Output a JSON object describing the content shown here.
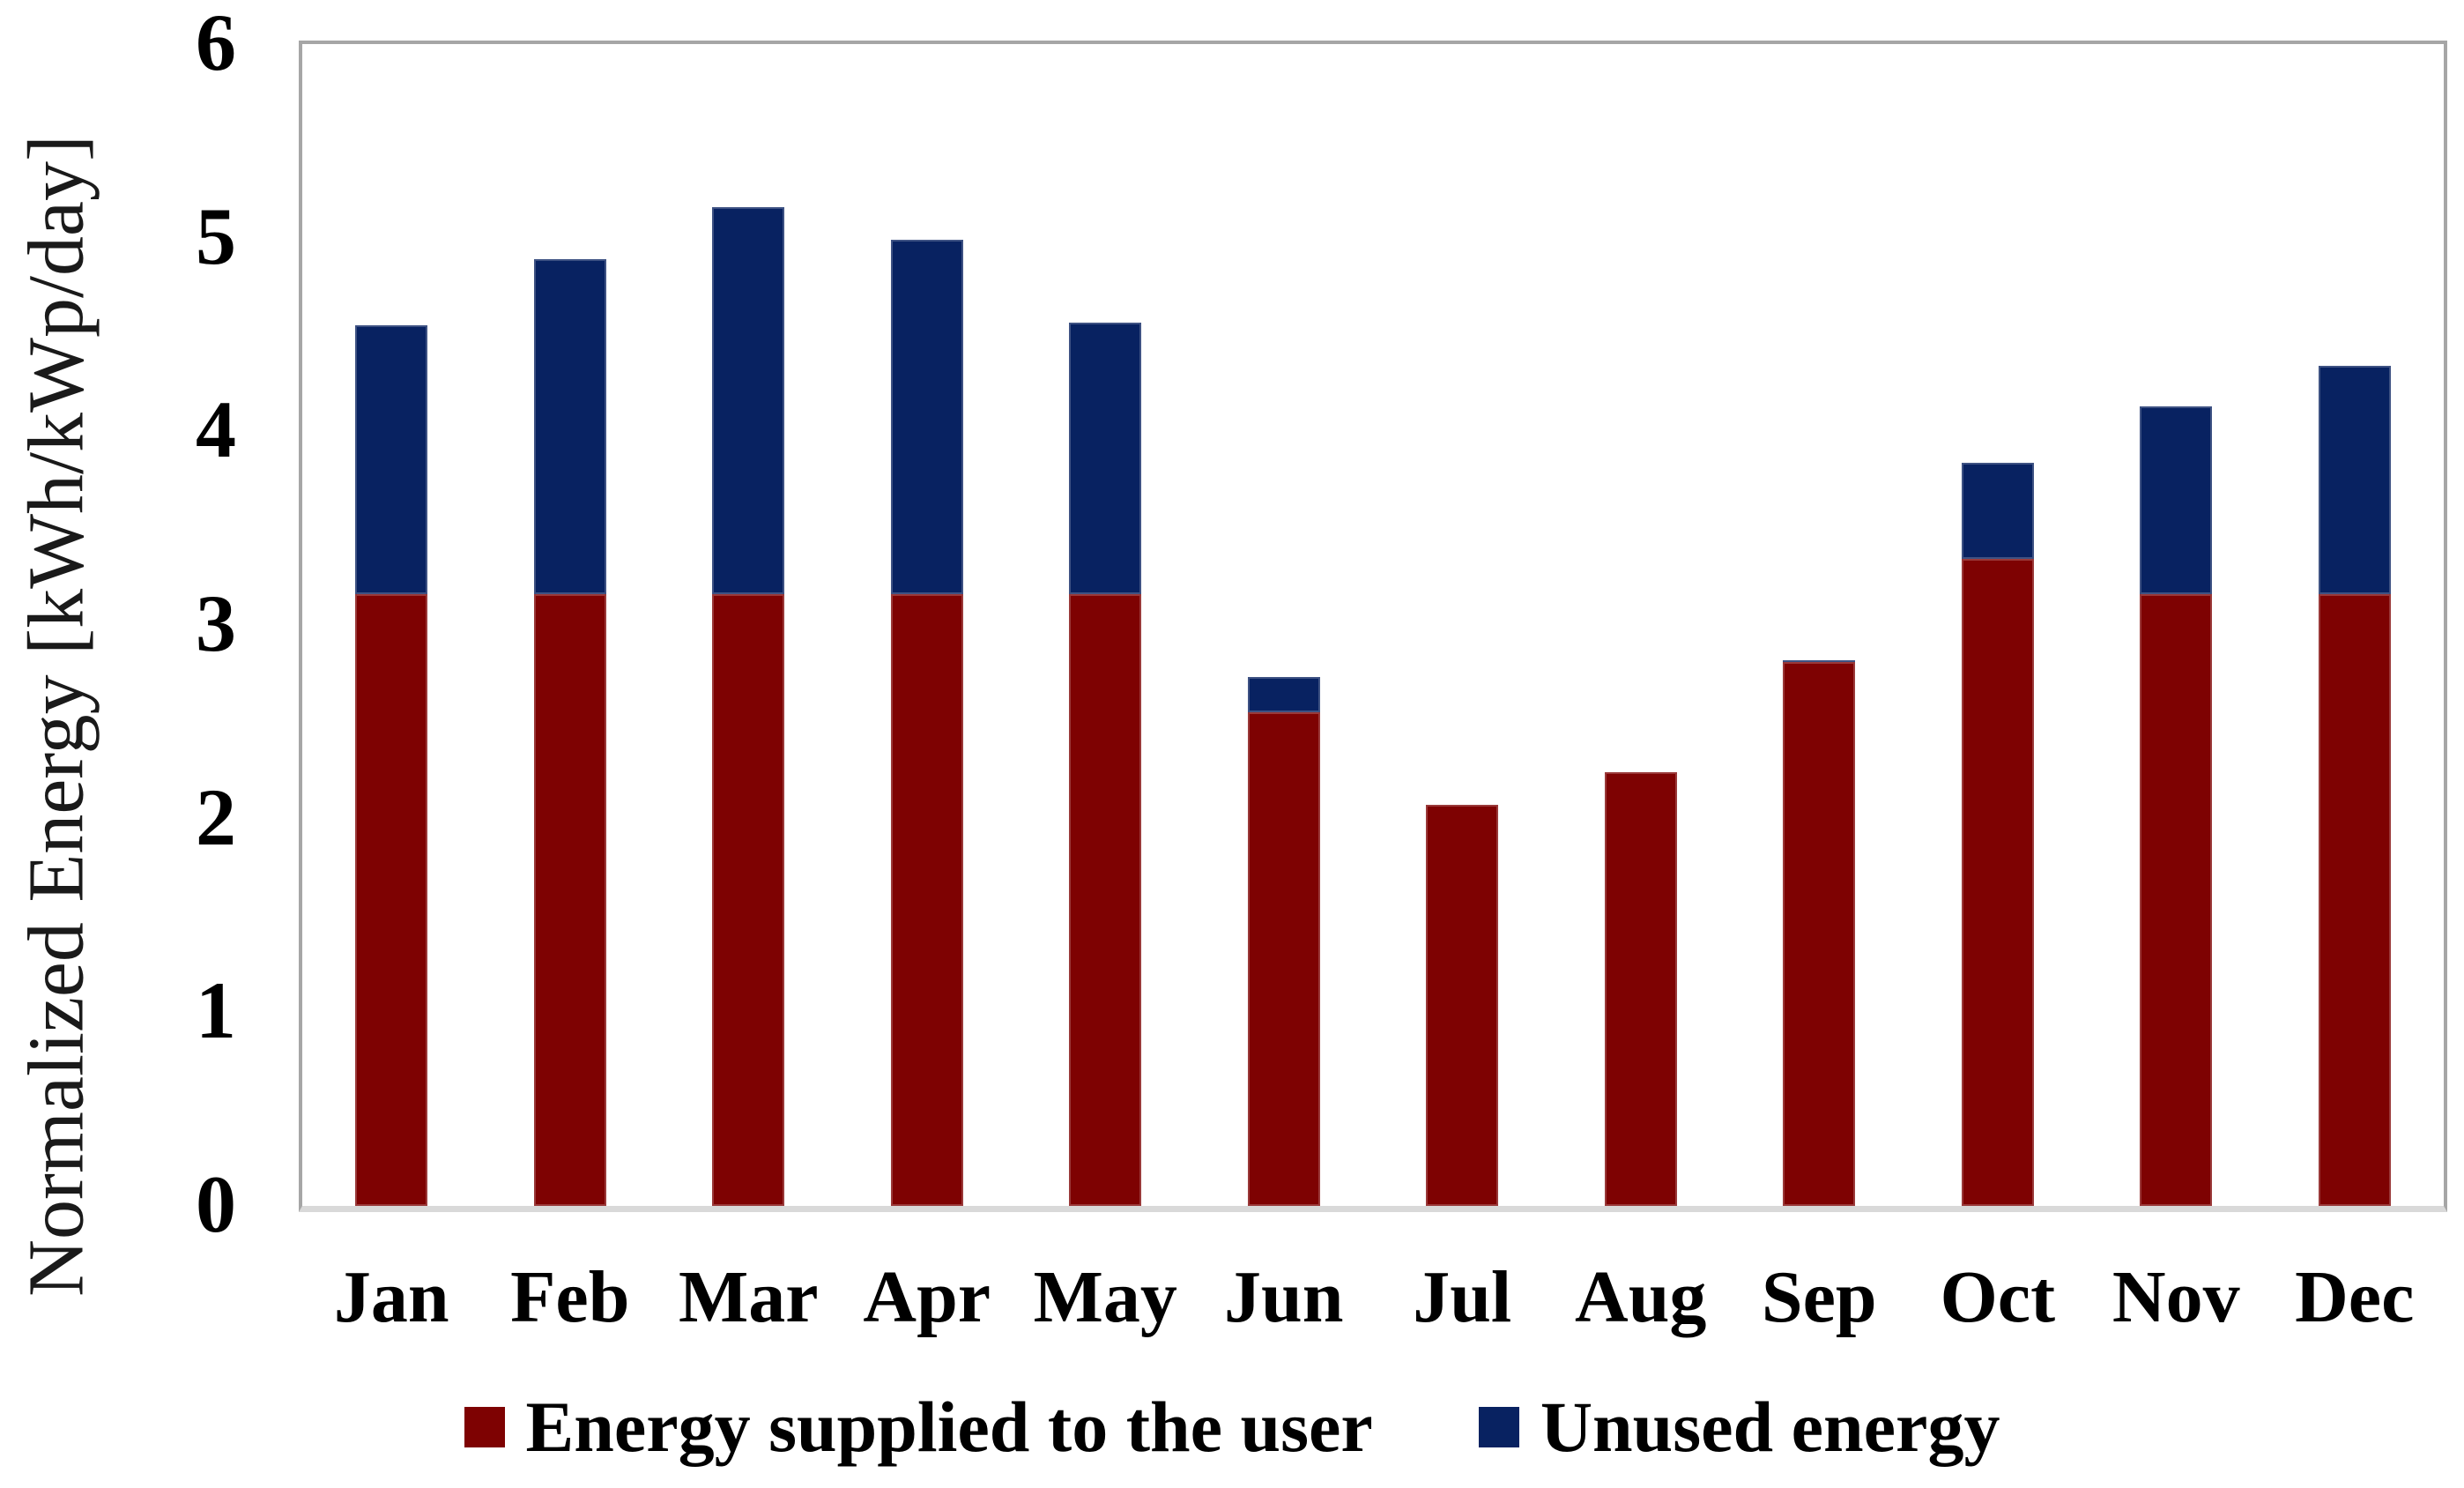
{
  "chart_data": {
    "type": "bar",
    "stacked": true,
    "title": "",
    "xlabel": "",
    "ylabel": "Normalized Energy [kWh/kWp/day]",
    "ylim": [
      0,
      6
    ],
    "yticks": [
      0,
      1,
      2,
      3,
      4,
      5,
      6
    ],
    "grid": false,
    "legend_position": "bottom",
    "categories": [
      "Jan",
      "Feb",
      "Mar",
      "Apr",
      "May",
      "Jun",
      "Jul",
      "Aug",
      "Sep",
      "Oct",
      "Nov",
      "Dec"
    ],
    "series": [
      {
        "name": "Energy supplied to the user",
        "color": "#7E0202",
        "values": [
          3.16,
          3.16,
          3.16,
          3.16,
          3.16,
          2.55,
          2.07,
          2.24,
          2.81,
          3.34,
          3.16,
          3.16
        ]
      },
      {
        "name": "Unused energy",
        "color": "#082261",
        "values": [
          1.39,
          1.73,
          2.0,
          1.83,
          1.4,
          0.18,
          0.0,
          0.0,
          0.01,
          0.5,
          0.97,
          1.18
        ]
      }
    ],
    "totals": [
      4.55,
      4.89,
      5.16,
      4.99,
      4.56,
      2.73,
      2.07,
      2.24,
      2.82,
      3.84,
      4.13,
      4.34
    ]
  },
  "ui_colors": {
    "plot_border": "#A6A6A6",
    "baseline": "#D9D9D9",
    "text": "#000000",
    "background": "#FFFFFF"
  }
}
